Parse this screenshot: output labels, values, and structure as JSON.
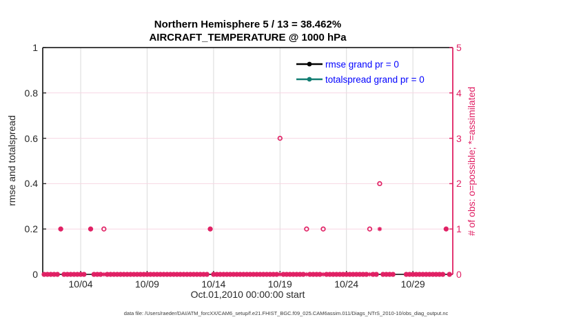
{
  "title": {
    "line1": "Northern Hemisphere 5 / 13 = 38.462%",
    "line2": "AIRCRAFT_TEMPERATURE @ 1000 hPa"
  },
  "left_axis": {
    "label": "rmse and totalspread",
    "tick_labels": [
      "0",
      "0.2",
      "0.4",
      "0.6",
      "0.8",
      "1"
    ],
    "tick_values": [
      0,
      0.2,
      0.4,
      0.6,
      0.8,
      1
    ]
  },
  "right_axis": {
    "label": "# of obs: o=possible; *=assimilated",
    "tick_labels": [
      "0",
      "1",
      "2",
      "3",
      "4",
      "5"
    ],
    "tick_values": [
      0,
      1,
      2,
      3,
      4,
      5
    ]
  },
  "x_axis": {
    "label": "Oct.01,2010 00:00:00 start",
    "ticks": [
      {
        "day": 3,
        "label": "10/04"
      },
      {
        "day": 8,
        "label": "10/09"
      },
      {
        "day": 13,
        "label": "10/14"
      },
      {
        "day": 18,
        "label": "10/19"
      },
      {
        "day": 23,
        "label": "10/24"
      },
      {
        "day": 28,
        "label": "10/29"
      }
    ]
  },
  "legend": {
    "items": [
      {
        "label": "rmse grand pr = 0",
        "line_color": "#000000"
      },
      {
        "label": "totalspread grand pr = 0",
        "line_color": "#117d72"
      }
    ],
    "text_color": "#0000ff"
  },
  "footer": "data file: /Users/raeder/DAI/ATM_forcXX/CAM6_setup/f.e21.FHIST_BGC.f09_025.CAM6assim.011/Diags_NTrS_2010-10/obs_diag_output.nc",
  "colors": {
    "obs_pink": "#e01f63",
    "grid_pink": "#f7d6e3",
    "grid_gray": "#dadada",
    "axis_dark": "#262626",
    "legend_blue": "#0000ff",
    "teal": "#117d72"
  },
  "chart_data": {
    "type": "scatter",
    "title": "Northern Hemisphere 5 / 13 = 38.462% | AIRCRAFT_TEMPERATURE @ 1000 hPa",
    "xlabel": "Oct.01,2010 00:00:00 start",
    "ylabel_left": "rmse and totalspread",
    "ylabel_right": "# of obs: o=possible; *=assimilated",
    "left_ylim": [
      0,
      1
    ],
    "right_ylim": [
      0,
      5
    ],
    "x_range_days_from_oct1": [
      0.145,
      31
    ],
    "grid": "on",
    "legend_position": "top-right-inside",
    "rmse_series_points": [],
    "totalspread_series_points": [],
    "obs_counts": {
      "units": "days since Oct 1 2010 00:00, 6-hourly bins",
      "zero_bins": {
        "start_day": 0.25,
        "end_day": 30.75,
        "step_day": 0.25,
        "missing_days": [
          3.5,
          26.75,
          27.0,
          27.25
        ]
      },
      "nonzero_bins": [
        {
          "day": 1.5,
          "possible": 1,
          "assimilated": 1
        },
        {
          "day": 3.75,
          "possible": 1,
          "assimilated": 1
        },
        {
          "day": 4.75,
          "possible": 1,
          "assimilated": 0
        },
        {
          "day": 12.75,
          "possible": 1,
          "assimilated": 1
        },
        {
          "day": 18.0,
          "possible": 3,
          "assimilated": 0
        },
        {
          "day": 20.0,
          "possible": 1,
          "assimilated": 0
        },
        {
          "day": 21.25,
          "possible": 1,
          "assimilated": 0
        },
        {
          "day": 24.75,
          "possible": 1,
          "assimilated": 0
        },
        {
          "day": 25.5,
          "possible": 2,
          "assimilated": 1
        },
        {
          "day": 30.5,
          "possible": 1,
          "assimilated": 1
        }
      ]
    }
  }
}
